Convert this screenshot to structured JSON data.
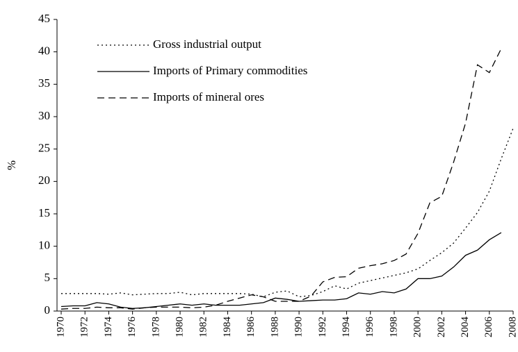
{
  "chart_data": {
    "type": "line",
    "y_label": "%",
    "x": [
      1970,
      1971,
      1972,
      1973,
      1974,
      1975,
      1976,
      1977,
      1978,
      1979,
      1980,
      1981,
      1982,
      1983,
      1984,
      1985,
      1986,
      1987,
      1988,
      1989,
      1990,
      1991,
      1992,
      1993,
      1994,
      1995,
      1996,
      1997,
      1998,
      1999,
      2000,
      2001,
      2002,
      2003,
      2004,
      2005,
      2006,
      2007,
      2008
    ],
    "series": [
      {
        "name": "Gross industrial output",
        "color": "#000000",
        "dash": "dotted",
        "values": [
          2.7,
          2.7,
          2.7,
          2.7,
          2.6,
          2.8,
          2.5,
          2.6,
          2.7,
          2.7,
          2.9,
          2.5,
          2.7,
          2.7,
          2.7,
          2.7,
          2.6,
          2.2,
          2.9,
          3.1,
          2.2,
          2.4,
          3.0,
          3.9,
          3.4,
          4.3,
          4.7,
          5.1,
          5.5,
          5.9,
          6.5,
          7.8,
          9.0,
          10.5,
          12.8,
          15.2,
          18.5,
          23.5,
          28.2
        ]
      },
      {
        "name": "Imports of Primary commodities",
        "color": "#000000",
        "dash": "solid",
        "values": [
          0.7,
          0.8,
          0.8,
          1.3,
          1.1,
          0.6,
          0.4,
          0.5,
          0.7,
          0.9,
          1.1,
          0.9,
          1.1,
          0.9,
          0.9,
          0.9,
          1.1,
          1.3,
          2.0,
          1.8,
          1.5,
          1.6,
          1.7,
          1.7,
          1.9,
          2.8,
          2.6,
          3.0,
          2.8,
          3.4,
          5.0,
          5.0,
          5.4,
          6.8,
          8.6,
          9.4,
          11.0,
          12.1,
          null
        ]
      },
      {
        "name": "Imports of mineral ores",
        "color": "#000000",
        "dash": "dashed",
        "values": [
          0.3,
          0.4,
          0.4,
          0.6,
          0.5,
          0.5,
          0.3,
          0.5,
          0.6,
          0.6,
          0.6,
          0.5,
          0.6,
          0.9,
          1.5,
          2.0,
          2.5,
          2.2,
          1.5,
          1.5,
          1.5,
          2.3,
          4.5,
          5.2,
          5.3,
          6.6,
          7.0,
          7.3,
          7.8,
          8.8,
          12.0,
          16.7,
          17.7,
          23.0,
          29.0,
          38.0,
          36.8,
          40.5,
          null
        ]
      }
    ],
    "xlim": [
      1970,
      2008
    ],
    "xticks": [
      1970,
      1972,
      1974,
      1976,
      1978,
      1980,
      1982,
      1984,
      1986,
      1988,
      1990,
      1992,
      1994,
      1996,
      1998,
      2000,
      2002,
      2004,
      2006,
      2008
    ],
    "ylim": [
      0,
      45
    ],
    "yticks": [
      0,
      5,
      10,
      15,
      20,
      25,
      30,
      35,
      40,
      45
    ],
    "grid": false
  }
}
